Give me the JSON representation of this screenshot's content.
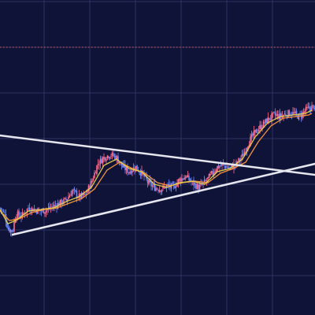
{
  "colors": {
    "background": "#0f1338",
    "grid": "#2e3363",
    "up_candle": "#ff6b8b",
    "down_candle": "#6b8bff",
    "ma_fast": "#e8d24a",
    "ma_slow": "#ff9a3c",
    "trendline": "#e6e6ee",
    "dotted_level": "#ff6b6b"
  },
  "chart_data": {
    "type": "candlestick",
    "title": "",
    "xlabel": "",
    "ylabel": "",
    "grid": true,
    "legend": "none",
    "xlim": [
      0,
      200
    ],
    "ylim": [
      0,
      100
    ],
    "dotted_level": 85,
    "close_path": [
      [
        0,
        34
      ],
      [
        3,
        32
      ],
      [
        5,
        27.5
      ],
      [
        8,
        26.5
      ],
      [
        10,
        32
      ],
      [
        14,
        31.5
      ],
      [
        18,
        34
      ],
      [
        22,
        33.5
      ],
      [
        26,
        33
      ],
      [
        30,
        33.5
      ],
      [
        34,
        34.5
      ],
      [
        38,
        35.5
      ],
      [
        42,
        36.5
      ],
      [
        46,
        39.5
      ],
      [
        50,
        37.5
      ],
      [
        54,
        38
      ],
      [
        58,
        42
      ],
      [
        62,
        48
      ],
      [
        66,
        50
      ],
      [
        70,
        51
      ],
      [
        74,
        50
      ],
      [
        78,
        47
      ],
      [
        82,
        45.5
      ],
      [
        86,
        47
      ],
      [
        90,
        45
      ],
      [
        94,
        42
      ],
      [
        98,
        40.5
      ],
      [
        102,
        40
      ],
      [
        106,
        41
      ],
      [
        110,
        40.5
      ],
      [
        114,
        43
      ],
      [
        118,
        44
      ],
      [
        122,
        42
      ],
      [
        126,
        40.5
      ],
      [
        130,
        42
      ],
      [
        134,
        44.5
      ],
      [
        138,
        47
      ],
      [
        142,
        47.5
      ],
      [
        146,
        46.5
      ],
      [
        150,
        48
      ],
      [
        154,
        50.5
      ],
      [
        158,
        55
      ],
      [
        162,
        58
      ],
      [
        166,
        60
      ],
      [
        170,
        62
      ],
      [
        174,
        63.5
      ],
      [
        178,
        63
      ],
      [
        182,
        64
      ],
      [
        186,
        64
      ],
      [
        190,
        63
      ],
      [
        194,
        65
      ],
      [
        198,
        66
      ]
    ],
    "ma_fast_path": [
      [
        0,
        33.5
      ],
      [
        5,
        29
      ],
      [
        10,
        30
      ],
      [
        18,
        33
      ],
      [
        26,
        33.5
      ],
      [
        34,
        34
      ],
      [
        42,
        36
      ],
      [
        50,
        37.5
      ],
      [
        58,
        40.5
      ],
      [
        66,
        47.5
      ],
      [
        74,
        49.5
      ],
      [
        82,
        46.5
      ],
      [
        90,
        45.5
      ],
      [
        98,
        41.5
      ],
      [
        106,
        40.5
      ],
      [
        114,
        42
      ],
      [
        122,
        42.5
      ],
      [
        130,
        41.5
      ],
      [
        138,
        45.5
      ],
      [
        146,
        46.5
      ],
      [
        154,
        49.5
      ],
      [
        162,
        56.5
      ],
      [
        170,
        61
      ],
      [
        178,
        63
      ],
      [
        186,
        63.5
      ],
      [
        194,
        64
      ],
      [
        198,
        65
      ]
    ],
    "ma_slow_path": [
      [
        0,
        33
      ],
      [
        6,
        30
      ],
      [
        12,
        30.5
      ],
      [
        20,
        32.5
      ],
      [
        28,
        33.5
      ],
      [
        36,
        34
      ],
      [
        44,
        35.5
      ],
      [
        52,
        37
      ],
      [
        60,
        40
      ],
      [
        68,
        46
      ],
      [
        76,
        48.5
      ],
      [
        84,
        46.5
      ],
      [
        92,
        45
      ],
      [
        100,
        42
      ],
      [
        108,
        41
      ],
      [
        116,
        42
      ],
      [
        124,
        42.5
      ],
      [
        132,
        42
      ],
      [
        140,
        45
      ],
      [
        148,
        46.5
      ],
      [
        156,
        48.5
      ],
      [
        164,
        55
      ],
      [
        172,
        60
      ],
      [
        180,
        62.5
      ],
      [
        188,
        63
      ],
      [
        196,
        63.5
      ],
      [
        198,
        64
      ]
    ],
    "trendlines": [
      {
        "name": "upper",
        "from": [
          0,
          57
        ],
        "to": [
          200,
          44.5
        ]
      },
      {
        "name": "lower",
        "from": [
          8,
          25.5
        ],
        "to": [
          200,
          48
        ]
      }
    ]
  }
}
